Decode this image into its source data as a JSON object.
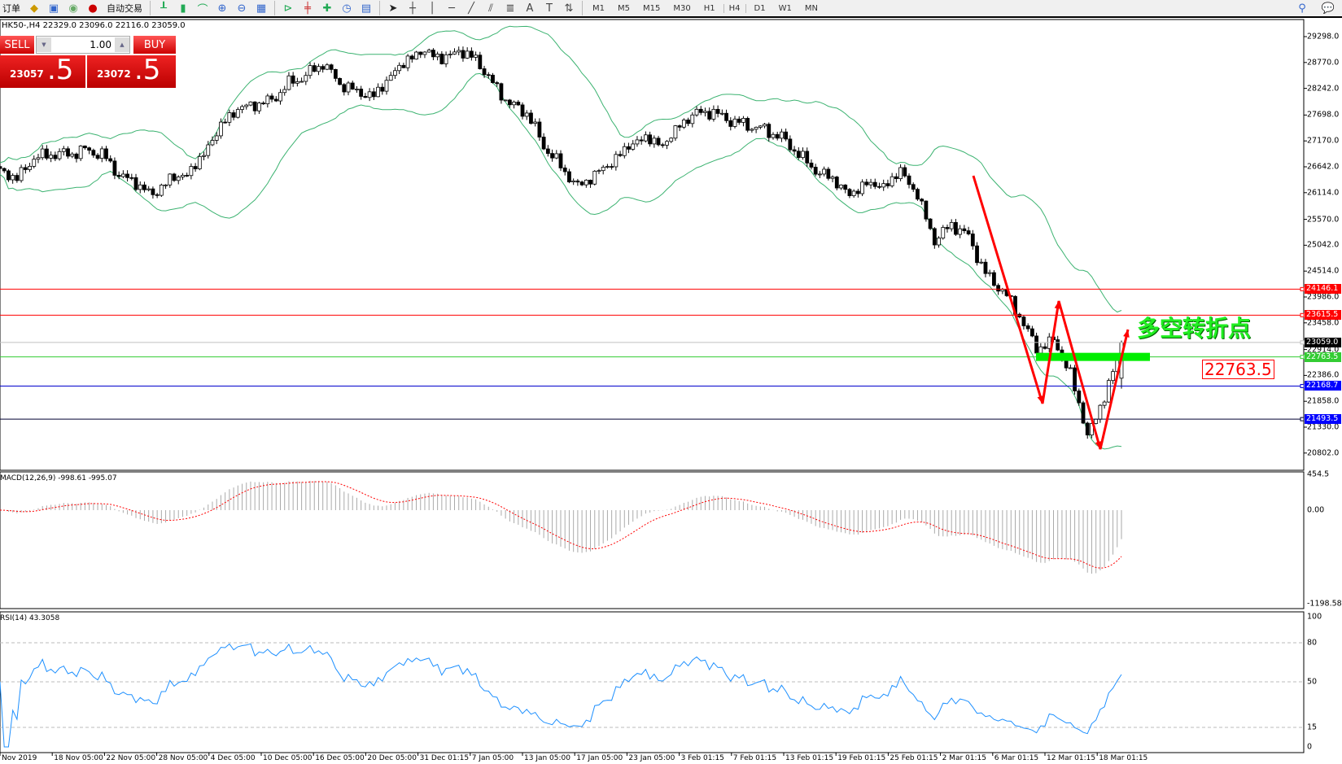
{
  "toolbar": {
    "items": [
      "订单",
      "自动交易"
    ],
    "timeframes": [
      "M1",
      "M5",
      "M15",
      "M30",
      "H1",
      "H4",
      "D1",
      "W1",
      "MN"
    ],
    "active_timeframe": "H4",
    "icons": [
      "book-icon",
      "people-icon",
      "signal-icon",
      "zoom-in-icon",
      "zoom-out-icon",
      "tile-icon",
      "bar-chart-icon",
      "candle-chart-icon",
      "line-chart-icon",
      "auto-scroll-icon",
      "chart-shift-icon",
      "new-indicator-icon",
      "period-clock-icon",
      "template-icon",
      "cursor-icon",
      "crosshair-icon",
      "vertical-line-icon",
      "horizontal-line-icon",
      "trendline-icon",
      "equidistant-channel-icon",
      "fibonacci-icon",
      "text-icon",
      "text-label-icon",
      "arrows-icon",
      "search-icon",
      "chat-icon"
    ]
  },
  "symbol_info": "HK50-,H4  22329.0 23096.0 22116.0 23059.0",
  "trade": {
    "sell_label": "SELL",
    "buy_label": "BUY",
    "lot": "1.00",
    "sell_main": "23057",
    "sell_frac": ".5",
    "buy_main": "23072",
    "buy_frac": ".5"
  },
  "colors": {
    "bull": "#ffffff",
    "bear": "#000000",
    "bands": "#3cb371",
    "macd_hist": "#aaaaaa",
    "macd_signal": "#ff0000",
    "rsi": "#1e90ff",
    "arrow": "#ff0000",
    "zone": "#00ee00"
  },
  "chart_data": [
    {
      "type": "candlestick",
      "symbol": "HK50-",
      "timeframe": "H4",
      "last_bar": {
        "open": 22329.0,
        "high": 23096.0,
        "low": 22116.0,
        "close": 23059.0
      },
      "closes_approx": [
        26560,
        26400,
        26820,
        26900,
        26900,
        26980,
        26900,
        26480,
        26310,
        26060,
        26400,
        26480,
        26900,
        27490,
        27830,
        27910,
        28000,
        28340,
        28500,
        28760,
        28340,
        28170,
        28080,
        28500,
        28840,
        29010,
        28840,
        29010,
        28840,
        28340,
        27920,
        27750,
        27070,
        26650,
        26230,
        26480,
        26730,
        27070,
        27240,
        27070,
        27490,
        27750,
        27750,
        27580,
        27490,
        27400,
        27240,
        26900,
        26560,
        26400,
        26060,
        26310,
        26230,
        26560,
        26060,
        25130,
        25470,
        25220,
        24450,
        24120,
        23610,
        22930,
        23100,
        22430,
        21160,
        21920,
        23059
      ],
      "indicator": "Bollinger Bands",
      "y_ticks": [
        29298.0,
        28770.0,
        28242.0,
        27698.0,
        27170.0,
        26642.0,
        26114.0,
        25570.0,
        25042.0,
        24514.0,
        23986.0,
        23458.0,
        22914.0,
        22386.0,
        21858.0,
        21330.0,
        20802.0
      ],
      "ylim": [
        20802.0,
        29298.0
      ],
      "x_ticks": [
        "Nov 2019",
        "18 Nov 05:00",
        "22 Nov 05:00",
        "28 Nov 05:00",
        "4 Dec 05:00",
        "10 Dec 05:00",
        "16 Dec 05:00",
        "20 Dec 05:00",
        "31 Dec 01:15",
        "7 Jan 05:00",
        "13 Jan 05:00",
        "17 Jan 05:00",
        "23 Jan 05:00",
        "3 Feb 01:15",
        "7 Feb 01:15",
        "13 Feb 01:15",
        "19 Feb 01:15",
        "25 Feb 01:15",
        "2 Mar 01:15",
        "6 Mar 01:15",
        "12 Mar 01:15",
        "18 Mar 01:15"
      ],
      "levels": [
        {
          "value": "24146.1",
          "color": "#ff0000"
        },
        {
          "value": "23615.5",
          "color": "#ff0000"
        },
        {
          "value": "23059.0",
          "color": "#000000",
          "line": "#c0c0c0"
        },
        {
          "value": "22763.5",
          "color": "#33cc33"
        },
        {
          "value": "22168.7",
          "color": "#0000ff",
          "line": "#0000cc"
        },
        {
          "value": "21493.5",
          "color": "#0000ff",
          "line": "#000033"
        }
      ],
      "annotation": "多空转折点",
      "annotation_level": "22763.5"
    },
    {
      "type": "macd",
      "title": "MACD(12,26,9) -998.61 -995.07",
      "y_ticks": [
        "454.5",
        "0.00",
        "-1198.58"
      ],
      "ylim": [
        -1198.58,
        454.5
      ]
    },
    {
      "type": "rsi",
      "title": "RSI(14) 43.3058",
      "y_ticks": [
        "100",
        "80",
        "50",
        "15",
        "0"
      ],
      "levels": [
        80,
        50,
        15
      ],
      "ylim": [
        0,
        100
      ]
    }
  ]
}
